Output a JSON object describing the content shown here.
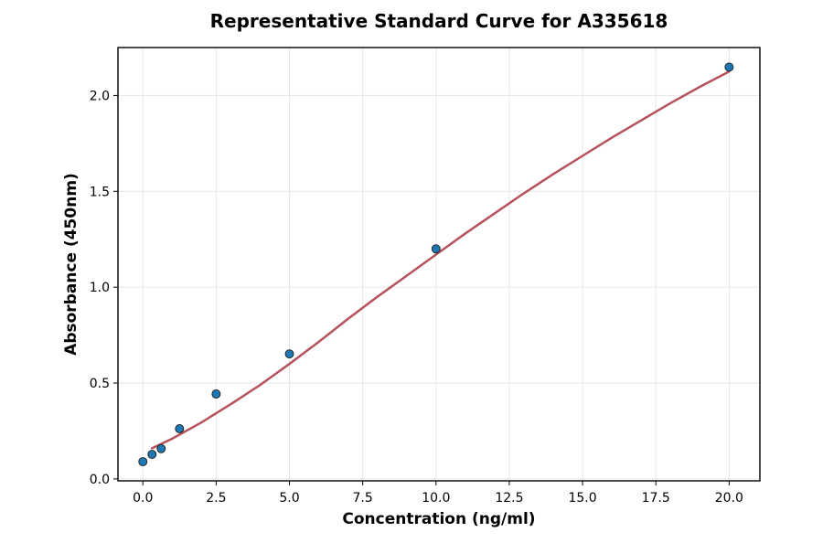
{
  "chart_data": {
    "type": "scatter",
    "title": "Representative Standard Curve for A335618",
    "xlabel": "Concentration (ng/ml)",
    "ylabel": "Absorbance (450nm)",
    "xlim": [
      -0.85,
      21.05
    ],
    "ylim": [
      -0.01,
      2.25
    ],
    "xticks": [
      0.0,
      2.5,
      5.0,
      7.5,
      10.0,
      12.5,
      15.0,
      17.5,
      20.0
    ],
    "xtick_labels": [
      "0.0",
      "2.5",
      "5.0",
      "7.5",
      "10.0",
      "12.5",
      "15.0",
      "17.5",
      "20.0"
    ],
    "yticks": [
      0.0,
      0.5,
      1.0,
      1.5,
      2.0
    ],
    "ytick_labels": [
      "0.0",
      "0.5",
      "1.0",
      "1.5",
      "2.0"
    ],
    "grid": true,
    "series": [
      {
        "kind": "points",
        "x": [
          0,
          0.312,
          0.625,
          1.25,
          2.5,
          5,
          10,
          20
        ],
        "y": [
          0.09,
          0.128,
          0.158,
          0.262,
          0.443,
          0.652,
          1.2,
          2.148
        ],
        "color": "#1f77b4"
      },
      {
        "kind": "fit-curve",
        "x": [
          0.312,
          1,
          2,
          3,
          4,
          5,
          6,
          7,
          8,
          9,
          10,
          11,
          12,
          13,
          14,
          15,
          16,
          17,
          18,
          19,
          20
        ],
        "y": [
          0.16,
          0.21,
          0.295,
          0.39,
          0.49,
          0.6,
          0.715,
          0.835,
          0.95,
          1.06,
          1.17,
          1.28,
          1.385,
          1.49,
          1.59,
          1.685,
          1.78,
          1.87,
          1.96,
          2.045,
          2.125
        ],
        "color": "#b5525c"
      }
    ]
  }
}
